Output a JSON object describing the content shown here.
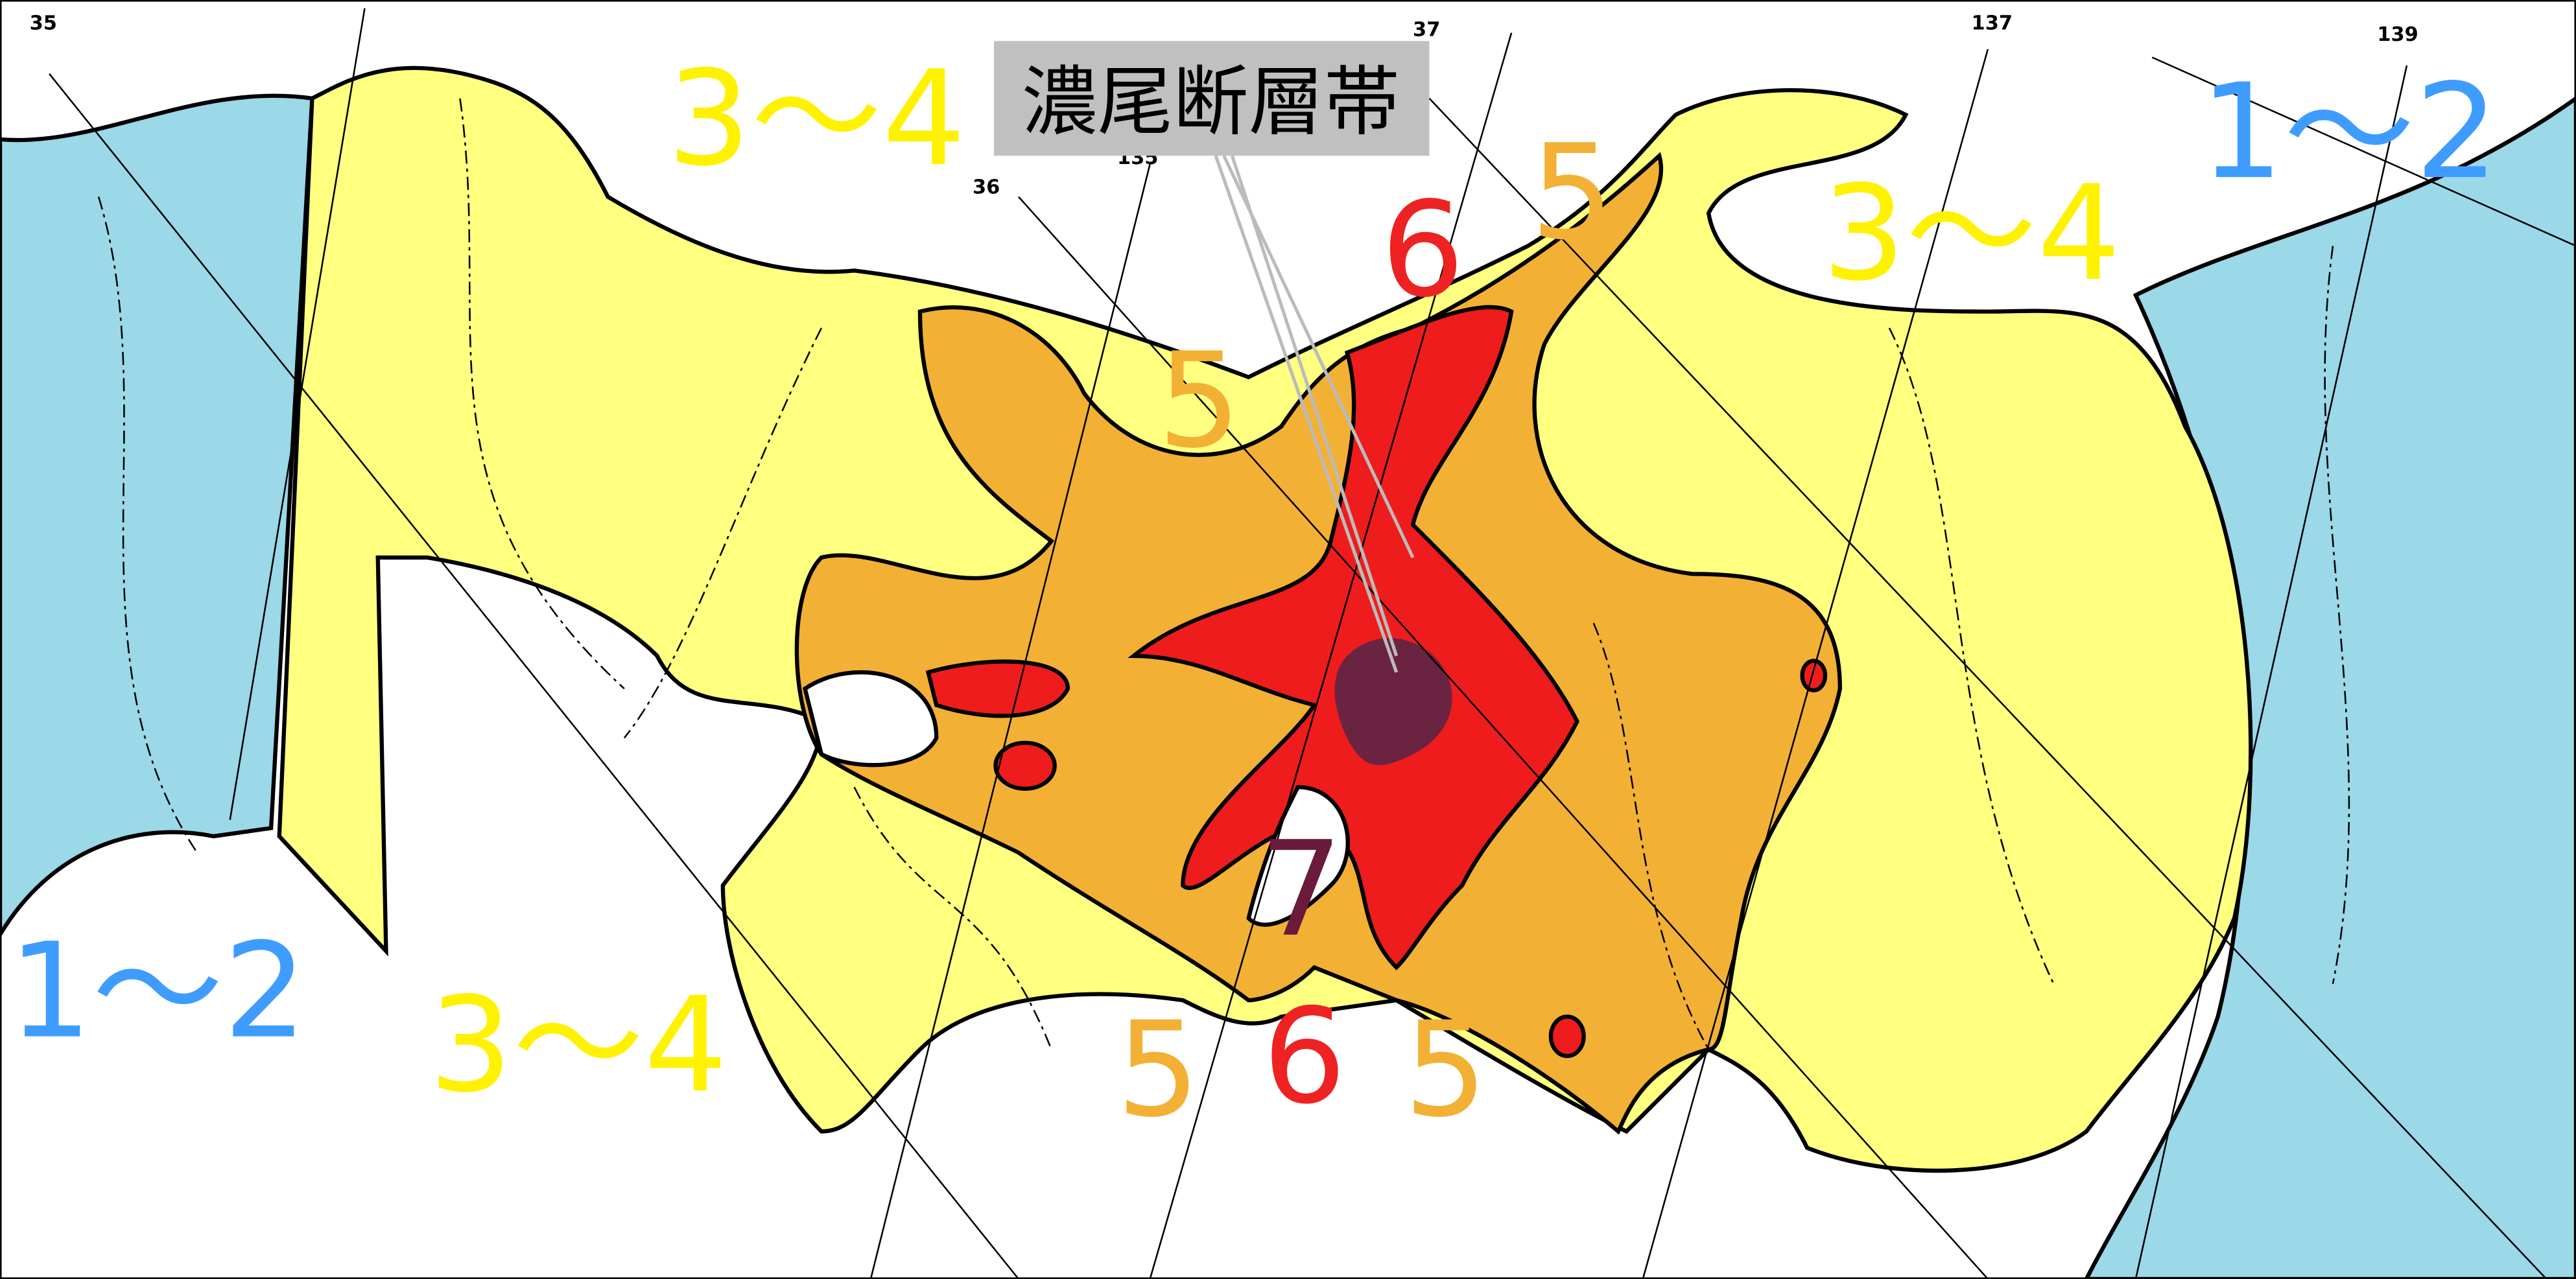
{
  "colors": {
    "intensity_1_2": "#9bd8e8",
    "intensity_3_4": "#ffff80",
    "intensity_5": "#f2b035",
    "intensity_6": "#ee1c1c",
    "intensity_7": "#6b2342",
    "label_1_2": "#3f9cff",
    "label_3_4": "#fff200",
    "label_5": "#f2b035",
    "label_6": "#ee2222",
    "label_7": "#6a1a3a",
    "callout_bg": "#c0c0c0"
  },
  "callout": {
    "text": "濃尾断層帯"
  },
  "grid_labels": {
    "lat35": "35",
    "lat36": "36",
    "lon135": "135",
    "lon137": "137",
    "lon139": "139",
    "top37": "37"
  },
  "intensity_labels": {
    "west_1_2": "1～2",
    "east_1_2": "1～2",
    "north_3_4": "3～4",
    "northeast_3_4": "3～4",
    "south_3_4": "3～4",
    "north_5": "5",
    "northeast_5": "5",
    "south_5_left": "5",
    "south_5_right": "5",
    "north_6": "6",
    "south_6": "6",
    "center_7": "7"
  }
}
